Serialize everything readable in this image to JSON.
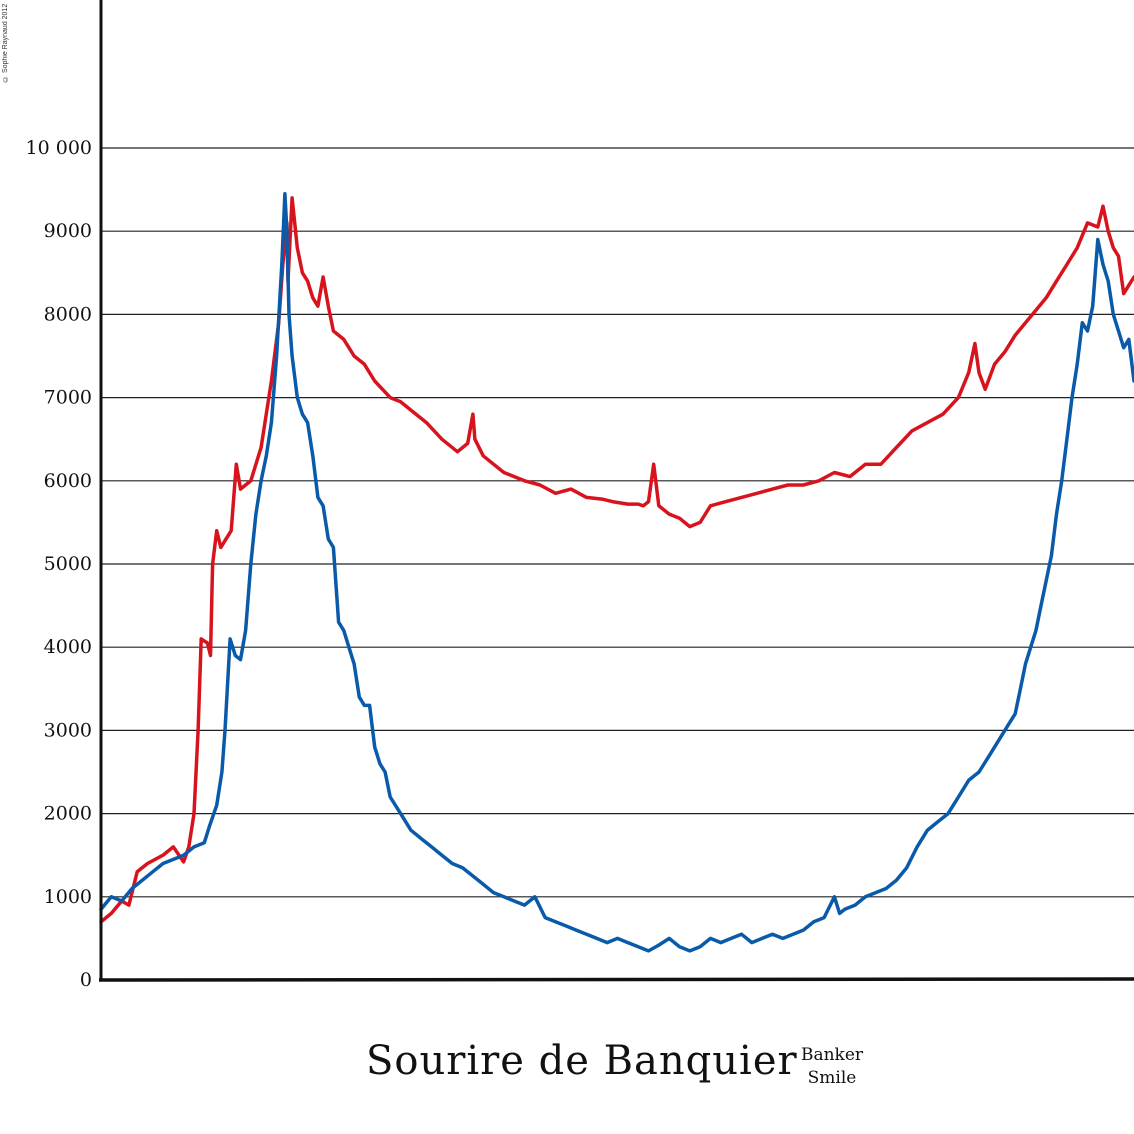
{
  "copyright": "© Sophie Raynaud 2012",
  "title": "Sourire de Banquier",
  "subtitle_line1": "Banker",
  "subtitle_line2": "Smile",
  "colors": {
    "series_red": "#d7141e",
    "series_blue": "#0a5aaa",
    "axis": "#111111",
    "grid": "#222222"
  },
  "chart_data": {
    "type": "line",
    "title": "Sourire de Banquier",
    "subtitle": "Banker Smile",
    "xlabel": "",
    "ylabel": "",
    "xlim": [
      0,
      1
    ],
    "ylim": [
      0,
      10000
    ],
    "grid": true,
    "y_ticks": [
      0,
      1000,
      2000,
      3000,
      4000,
      5000,
      6000,
      7000,
      8000,
      9000,
      10000
    ],
    "y_tick_labels": [
      "0",
      "1000",
      "2000",
      "3000",
      "4000",
      "5000",
      "6000",
      "7000",
      "8000",
      "9000",
      "10 000"
    ],
    "series": [
      {
        "color": "#d7141e",
        "points": [
          [
            0.0,
            700
          ],
          [
            0.01,
            800
          ],
          [
            0.02,
            950
          ],
          [
            0.027,
            900
          ],
          [
            0.035,
            1300
          ],
          [
            0.045,
            1400
          ],
          [
            0.06,
            1500
          ],
          [
            0.07,
            1600
          ],
          [
            0.08,
            1420
          ],
          [
            0.085,
            1600
          ],
          [
            0.09,
            2000
          ],
          [
            0.094,
            3000
          ],
          [
            0.097,
            4100
          ],
          [
            0.103,
            4050
          ],
          [
            0.106,
            3900
          ],
          [
            0.108,
            5000
          ],
          [
            0.112,
            5400
          ],
          [
            0.116,
            5200
          ],
          [
            0.126,
            5400
          ],
          [
            0.131,
            6200
          ],
          [
            0.135,
            5900
          ],
          [
            0.145,
            6000
          ],
          [
            0.155,
            6400
          ],
          [
            0.165,
            7200
          ],
          [
            0.172,
            7900
          ],
          [
            0.176,
            8600
          ],
          [
            0.18,
            9100
          ],
          [
            0.181,
            8400
          ],
          [
            0.185,
            9400
          ],
          [
            0.19,
            8800
          ],
          [
            0.195,
            8500
          ],
          [
            0.2,
            8400
          ],
          [
            0.205,
            8200
          ],
          [
            0.21,
            8100
          ],
          [
            0.215,
            8450
          ],
          [
            0.22,
            8100
          ],
          [
            0.225,
            7800
          ],
          [
            0.235,
            7700
          ],
          [
            0.245,
            7500
          ],
          [
            0.255,
            7400
          ],
          [
            0.265,
            7200
          ],
          [
            0.28,
            7000
          ],
          [
            0.29,
            6950
          ],
          [
            0.3,
            6850
          ],
          [
            0.315,
            6700
          ],
          [
            0.33,
            6500
          ],
          [
            0.345,
            6350
          ],
          [
            0.355,
            6450
          ],
          [
            0.36,
            6800
          ],
          [
            0.362,
            6500
          ],
          [
            0.37,
            6300
          ],
          [
            0.38,
            6200
          ],
          [
            0.39,
            6100
          ],
          [
            0.4,
            6050
          ],
          [
            0.41,
            6000
          ],
          [
            0.425,
            5950
          ],
          [
            0.44,
            5850
          ],
          [
            0.455,
            5900
          ],
          [
            0.47,
            5800
          ],
          [
            0.485,
            5780
          ],
          [
            0.495,
            5750
          ],
          [
            0.51,
            5720
          ],
          [
            0.52,
            5720
          ],
          [
            0.525,
            5700
          ],
          [
            0.53,
            5750
          ],
          [
            0.535,
            6200
          ],
          [
            0.54,
            5700
          ],
          [
            0.55,
            5600
          ],
          [
            0.56,
            5550
          ],
          [
            0.57,
            5450
          ],
          [
            0.58,
            5500
          ],
          [
            0.59,
            5700
          ],
          [
            0.605,
            5750
          ],
          [
            0.62,
            5800
          ],
          [
            0.635,
            5850
          ],
          [
            0.65,
            5900
          ],
          [
            0.665,
            5950
          ],
          [
            0.68,
            5950
          ],
          [
            0.695,
            6000
          ],
          [
            0.71,
            6100
          ],
          [
            0.725,
            6050
          ],
          [
            0.74,
            6200
          ],
          [
            0.755,
            6200
          ],
          [
            0.77,
            6400
          ],
          [
            0.785,
            6600
          ],
          [
            0.8,
            6700
          ],
          [
            0.815,
            6800
          ],
          [
            0.83,
            7000
          ],
          [
            0.84,
            7300
          ],
          [
            0.846,
            7650
          ],
          [
            0.85,
            7300
          ],
          [
            0.856,
            7100
          ],
          [
            0.865,
            7400
          ],
          [
            0.875,
            7550
          ],
          [
            0.885,
            7750
          ],
          [
            0.895,
            7900
          ],
          [
            0.905,
            8050
          ],
          [
            0.915,
            8200
          ],
          [
            0.925,
            8400
          ],
          [
            0.935,
            8600
          ],
          [
            0.945,
            8800
          ],
          [
            0.955,
            9100
          ],
          [
            0.965,
            9050
          ],
          [
            0.97,
            9300
          ],
          [
            0.975,
            9000
          ],
          [
            0.98,
            8800
          ],
          [
            0.985,
            8700
          ],
          [
            0.99,
            8250
          ],
          [
            0.995,
            8350
          ],
          [
            1.0,
            8450
          ]
        ]
      },
      {
        "color": "#0a5aaa",
        "points": [
          [
            0.0,
            850
          ],
          [
            0.01,
            1000
          ],
          [
            0.02,
            950
          ],
          [
            0.03,
            1100
          ],
          [
            0.04,
            1200
          ],
          [
            0.05,
            1300
          ],
          [
            0.06,
            1400
          ],
          [
            0.07,
            1450
          ],
          [
            0.08,
            1500
          ],
          [
            0.09,
            1600
          ],
          [
            0.1,
            1650
          ],
          [
            0.105,
            1850
          ],
          [
            0.112,
            2100
          ],
          [
            0.117,
            2500
          ],
          [
            0.12,
            3000
          ],
          [
            0.125,
            4100
          ],
          [
            0.13,
            3900
          ],
          [
            0.135,
            3850
          ],
          [
            0.14,
            4200
          ],
          [
            0.145,
            5000
          ],
          [
            0.15,
            5600
          ],
          [
            0.155,
            6000
          ],
          [
            0.16,
            6300
          ],
          [
            0.165,
            6700
          ],
          [
            0.17,
            7500
          ],
          [
            0.175,
            8600
          ],
          [
            0.178,
            9450
          ],
          [
            0.18,
            9000
          ],
          [
            0.182,
            8000
          ],
          [
            0.185,
            7500
          ],
          [
            0.19,
            7000
          ],
          [
            0.195,
            6800
          ],
          [
            0.2,
            6700
          ],
          [
            0.205,
            6300
          ],
          [
            0.21,
            5800
          ],
          [
            0.215,
            5700
          ],
          [
            0.22,
            5300
          ],
          [
            0.225,
            5200
          ],
          [
            0.23,
            4300
          ],
          [
            0.235,
            4200
          ],
          [
            0.24,
            4000
          ],
          [
            0.245,
            3800
          ],
          [
            0.25,
            3400
          ],
          [
            0.255,
            3300
          ],
          [
            0.26,
            3300
          ],
          [
            0.265,
            2800
          ],
          [
            0.27,
            2600
          ],
          [
            0.275,
            2500
          ],
          [
            0.28,
            2200
          ],
          [
            0.29,
            2000
          ],
          [
            0.3,
            1800
          ],
          [
            0.31,
            1700
          ],
          [
            0.32,
            1600
          ],
          [
            0.33,
            1500
          ],
          [
            0.34,
            1400
          ],
          [
            0.35,
            1350
          ],
          [
            0.36,
            1250
          ],
          [
            0.37,
            1150
          ],
          [
            0.38,
            1050
          ],
          [
            0.39,
            1000
          ],
          [
            0.4,
            950
          ],
          [
            0.41,
            900
          ],
          [
            0.42,
            1000
          ],
          [
            0.43,
            750
          ],
          [
            0.44,
            700
          ],
          [
            0.45,
            650
          ],
          [
            0.46,
            600
          ],
          [
            0.47,
            550
          ],
          [
            0.48,
            500
          ],
          [
            0.49,
            450
          ],
          [
            0.5,
            500
          ],
          [
            0.51,
            450
          ],
          [
            0.52,
            400
          ],
          [
            0.53,
            350
          ],
          [
            0.54,
            420
          ],
          [
            0.55,
            500
          ],
          [
            0.56,
            400
          ],
          [
            0.57,
            350
          ],
          [
            0.58,
            400
          ],
          [
            0.59,
            500
          ],
          [
            0.6,
            450
          ],
          [
            0.61,
            500
          ],
          [
            0.62,
            550
          ],
          [
            0.63,
            450
          ],
          [
            0.64,
            500
          ],
          [
            0.65,
            550
          ],
          [
            0.66,
            500
          ],
          [
            0.67,
            550
          ],
          [
            0.68,
            600
          ],
          [
            0.69,
            700
          ],
          [
            0.7,
            750
          ],
          [
            0.71,
            1000
          ],
          [
            0.715,
            800
          ],
          [
            0.72,
            850
          ],
          [
            0.73,
            900
          ],
          [
            0.74,
            1000
          ],
          [
            0.75,
            1050
          ],
          [
            0.76,
            1100
          ],
          [
            0.77,
            1200
          ],
          [
            0.78,
            1350
          ],
          [
            0.79,
            1600
          ],
          [
            0.8,
            1800
          ],
          [
            0.81,
            1900
          ],
          [
            0.82,
            2000
          ],
          [
            0.83,
            2200
          ],
          [
            0.84,
            2400
          ],
          [
            0.85,
            2500
          ],
          [
            0.86,
            2700
          ],
          [
            0.87,
            2900
          ],
          [
            0.88,
            3100
          ],
          [
            0.885,
            3200
          ],
          [
            0.89,
            3500
          ],
          [
            0.895,
            3800
          ],
          [
            0.9,
            4000
          ],
          [
            0.905,
            4200
          ],
          [
            0.91,
            4500
          ],
          [
            0.915,
            4800
          ],
          [
            0.92,
            5100
          ],
          [
            0.925,
            5600
          ],
          [
            0.93,
            6000
          ],
          [
            0.935,
            6500
          ],
          [
            0.94,
            7000
          ],
          [
            0.945,
            7400
          ],
          [
            0.95,
            7900
          ],
          [
            0.955,
            7800
          ],
          [
            0.96,
            8100
          ],
          [
            0.965,
            8900
          ],
          [
            0.97,
            8600
          ],
          [
            0.975,
            8400
          ],
          [
            0.98,
            8000
          ],
          [
            0.985,
            7800
          ],
          [
            0.99,
            7600
          ],
          [
            0.995,
            7700
          ],
          [
            1.0,
            7200
          ]
        ]
      }
    ]
  }
}
